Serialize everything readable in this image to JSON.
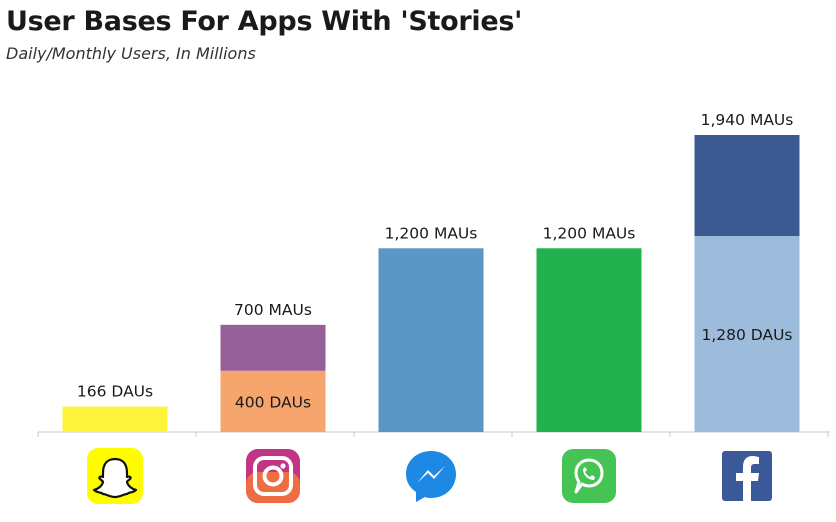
{
  "title": "User Bases For Apps With 'Stories'",
  "subtitle": "Daily/Monthly Users, In Millions",
  "chart_data": {
    "type": "bar",
    "title": "User Bases For Apps With 'Stories'",
    "subtitle": "Daily/Monthly Users, In Millions",
    "xlabel": "",
    "ylabel": "",
    "ylim": [
      0,
      2000
    ],
    "grid": false,
    "legend": "none",
    "categories": [
      "snapchat-icon",
      "instagram-icon",
      "messenger-icon",
      "whatsapp-icon",
      "facebook-icon"
    ],
    "bars": [
      {
        "icon": "snapchat-icon",
        "segments": [
          {
            "metric": "DAUs",
            "value": 166,
            "color": "#fdf33a",
            "label": "166 DAUs",
            "label_pos": "above"
          }
        ]
      },
      {
        "icon": "instagram-icon",
        "segments": [
          {
            "metric": "DAUs",
            "value": 400,
            "color": "#f6a56c",
            "label": "400 DAUs",
            "label_pos": "inside"
          },
          {
            "metric": "MAUs",
            "value": 700,
            "color": "#955f9a",
            "label": "700 MAUs",
            "label_pos": "above"
          }
        ]
      },
      {
        "icon": "messenger-icon",
        "segments": [
          {
            "metric": "MAUs",
            "value": 1200,
            "color": "#5b96c4",
            "label": "1,200 MAUs",
            "label_pos": "above"
          }
        ]
      },
      {
        "icon": "whatsapp-icon",
        "segments": [
          {
            "metric": "MAUs",
            "value": 1200,
            "color": "#21b14d",
            "label": "1,200 MAUs",
            "label_pos": "above"
          }
        ]
      },
      {
        "icon": "facebook-icon",
        "segments": [
          {
            "metric": "DAUs",
            "value": 1280,
            "color": "#9dbcdc",
            "label": "1,280 DAUs",
            "label_pos": "inside"
          },
          {
            "metric": "MAUs",
            "value": 1940,
            "color": "#3b5a92",
            "label": "1,940 MAUs",
            "label_pos": "above"
          }
        ]
      }
    ]
  }
}
